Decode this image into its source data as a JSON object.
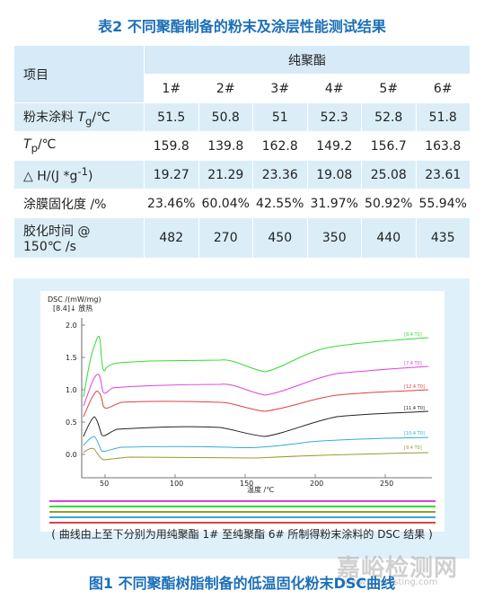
{
  "table": {
    "title": "表2 不同聚酯制备的粉末及涂层性能测试结果",
    "header_item": "项目",
    "header_group": "纯聚酯",
    "columns": [
      "1#",
      "2#",
      "3#",
      "4#",
      "5#",
      "6#"
    ],
    "rows": [
      {
        "label_html": "粉末涂料 <i>T</i><sub>g</sub>/℃",
        "values": [
          "51.5",
          "50.8",
          "51",
          "52.3",
          "52.8",
          "51.8"
        ]
      },
      {
        "label_html": "<i>T</i><sub>p</sub>/℃",
        "values": [
          "159.8",
          "139.8",
          "162.8",
          "149.2",
          "156.7",
          "163.8"
        ]
      },
      {
        "label_html": "△ H/(J *g<sup>-1</sup>)",
        "values": [
          "19.27",
          "21.29",
          "23.36",
          "19.08",
          "25.08",
          "23.61"
        ]
      },
      {
        "label_html": "涂膜固化度 /%",
        "values": [
          "23.46%",
          "60.04%",
          "42.55%",
          "31.97%",
          "50.92%",
          "55.94%"
        ]
      },
      {
        "label_html": "胶化时间 @<br>150℃ /s",
        "values": [
          "482",
          "270",
          "450",
          "350",
          "440",
          "435"
        ]
      }
    ]
  },
  "figure": {
    "ylabel": "DSC /(mW/mg)",
    "annotation": "[8.4]↓ 放热",
    "xlabel": "温度 /℃",
    "yticks": [
      "2.0",
      "1.5",
      "1.0",
      "0.5",
      "0.0"
    ],
    "xticks": [
      "50",
      "100",
      "150",
      "200",
      "250"
    ],
    "curve_labels": [
      "[8.4 T0]",
      "[7.4 T0]",
      "[12.4 T0]",
      "[11.4 T0]",
      "[10.4 T0]",
      "[9.4 T0]"
    ],
    "colors": [
      "#33dd33",
      "#e040e0",
      "#e04040",
      "#222222",
      "#33aadd",
      "#999933"
    ],
    "caption": "( 曲线由上至下分别为用纯聚酯 1# 至纯聚酯 6# 所制得粉末涂料的 DSC 结果 )",
    "title": "图1 不同聚酯树脂制备的低温固化粉末DSC曲线"
  },
  "watermark": {
    "text": "嘉峪检测网",
    "url": "www.anytesting.com"
  }
}
